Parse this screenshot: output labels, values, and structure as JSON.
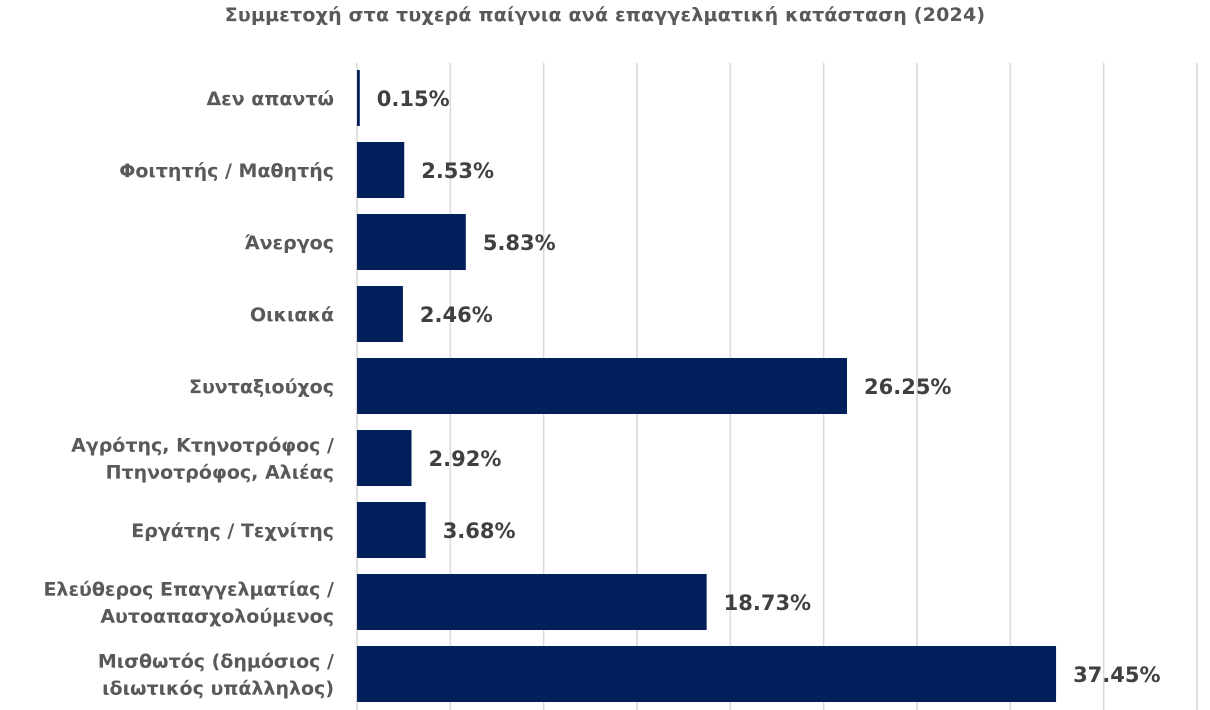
{
  "chart_data": {
    "type": "bar",
    "orientation": "horizontal",
    "title": "Συμμετοχή στα τυχερά παίγνια ανά επαγγελματική κατάσταση (2024)",
    "categories": [
      [
        "Δεν απαντώ"
      ],
      [
        "Φοιτητής / Μαθητής"
      ],
      [
        "Άνεργος"
      ],
      [
        "Οικιακά"
      ],
      [
        "Συνταξιούχος"
      ],
      [
        "Αγρότης, Κτηνοτρόφος /",
        "Πτηνοτρόφος, Αλιέας"
      ],
      [
        "Εργάτης / Τεχνίτης"
      ],
      [
        "Ελεύθερος Επαγγελματίας /",
        "Αυτοαπασχολούμενος"
      ],
      [
        "Μισθωτός (δημόσιος /",
        "ιδιωτικός υπάλληλος)"
      ]
    ],
    "values": [
      0.15,
      2.53,
      5.83,
      2.46,
      26.25,
      2.92,
      3.68,
      18.73,
      37.45
    ],
    "value_labels": [
      "0.15%",
      "2.53%",
      "5.83%",
      "2.46%",
      "26.25%",
      "2.92%",
      "3.68%",
      "18.73%",
      "37.45%"
    ],
    "xlim": [
      0,
      45
    ],
    "grid": true,
    "legend": "none",
    "bar_color": "#001F5B",
    "grid_color": "#D9D9D9"
  }
}
